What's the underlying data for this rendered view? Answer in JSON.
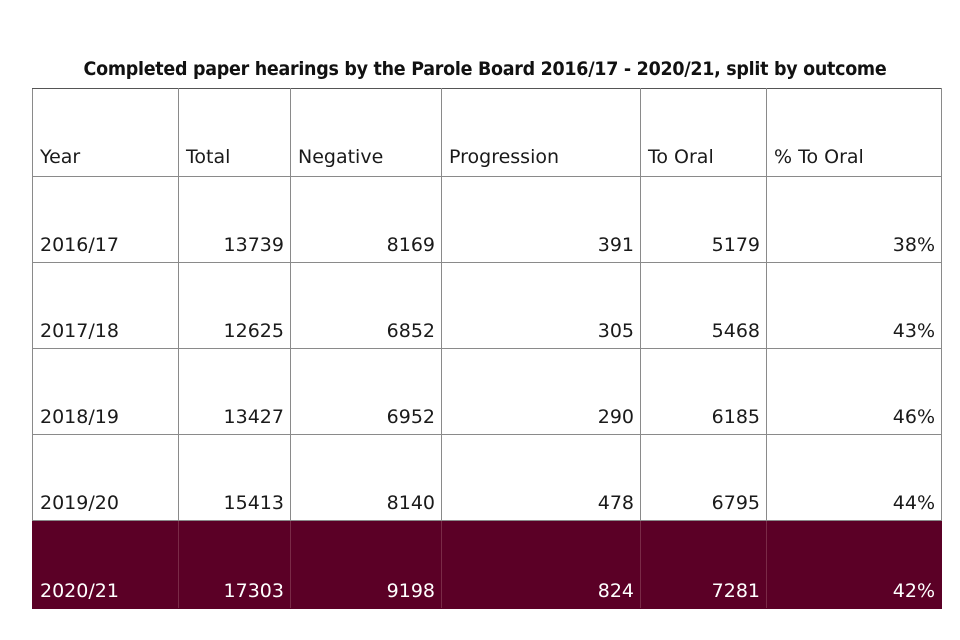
{
  "title": "Completed paper hearings by the Parole Board 2016/17 - 2020/21, split by outcome",
  "chart_data": {
    "type": "table",
    "title": "Completed paper hearings by the Parole Board 2016/17 - 2020/21, split by outcome",
    "columns": [
      "Year",
      "Total",
      "Negative",
      "Progression",
      "To Oral",
      "% To Oral"
    ],
    "rows": [
      [
        "2016/17",
        "13739",
        "8169",
        "391",
        "5179",
        "38%"
      ],
      [
        "2017/18",
        "12625",
        "6852",
        "305",
        "5468",
        "43%"
      ],
      [
        "2018/19",
        "13427",
        "6952",
        "290",
        "6185",
        "46%"
      ],
      [
        "2019/20",
        "15413",
        "8140",
        "478",
        "6795",
        "44%"
      ],
      [
        "2020/21",
        "17303",
        "9198",
        "824",
        "7281",
        "42%"
      ]
    ],
    "highlight_row_index": 4,
    "highlight_color": "#5b0026"
  }
}
